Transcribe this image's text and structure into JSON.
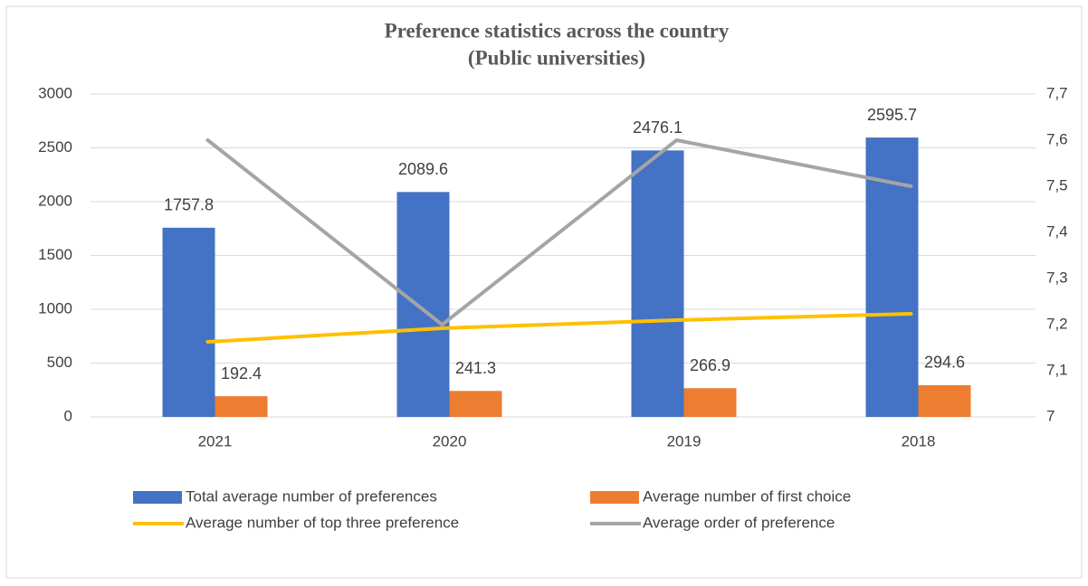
{
  "chart_data": {
    "type": "bar_line",
    "title": "Preference statistics across the country",
    "subtitle": "(Public universities)",
    "categories": [
      "2021",
      "2020",
      "2019",
      "2018"
    ],
    "series": [
      {
        "name": "Total average number of preferences",
        "type": "bar",
        "color": "#4472c4",
        "values": [
          1757.8,
          2089.6,
          2476.1,
          2595.7
        ]
      },
      {
        "name": "Average number of first choice",
        "type": "bar",
        "color": "#ed7d31",
        "values": [
          192.4,
          241.3,
          266.9,
          294.6
        ]
      },
      {
        "name": "Average number of top three preference",
        "type": "line",
        "color": "#ffc000",
        "values": [
          697,
          824,
          899,
          958
        ]
      },
      {
        "name": "Average order of preference",
        "type": "line",
        "axis": "y2",
        "color": "#a5a5a5",
        "values": [
          7.6,
          7.2,
          7.6,
          7.5
        ]
      }
    ],
    "ylim": [
      0,
      3000
    ],
    "yticks": [
      0,
      500,
      1000,
      1500,
      2000,
      2500,
      3000
    ],
    "y2lim": [
      7,
      7.7
    ],
    "y2ticks": [
      7,
      {
        "value": 7.1,
        "label": "7,1"
      },
      {
        "value": 7.2,
        "label": "7,2"
      },
      {
        "value": 7.3,
        "label": "7,3"
      },
      {
        "value": 7.4,
        "label": "7,4"
      },
      {
        "value": 7.5,
        "label": "7,5"
      },
      {
        "value": 7.6,
        "label": "7,6"
      },
      {
        "value": 7.7,
        "label": "7,7"
      }
    ],
    "grid": true,
    "legend": "bottom"
  }
}
